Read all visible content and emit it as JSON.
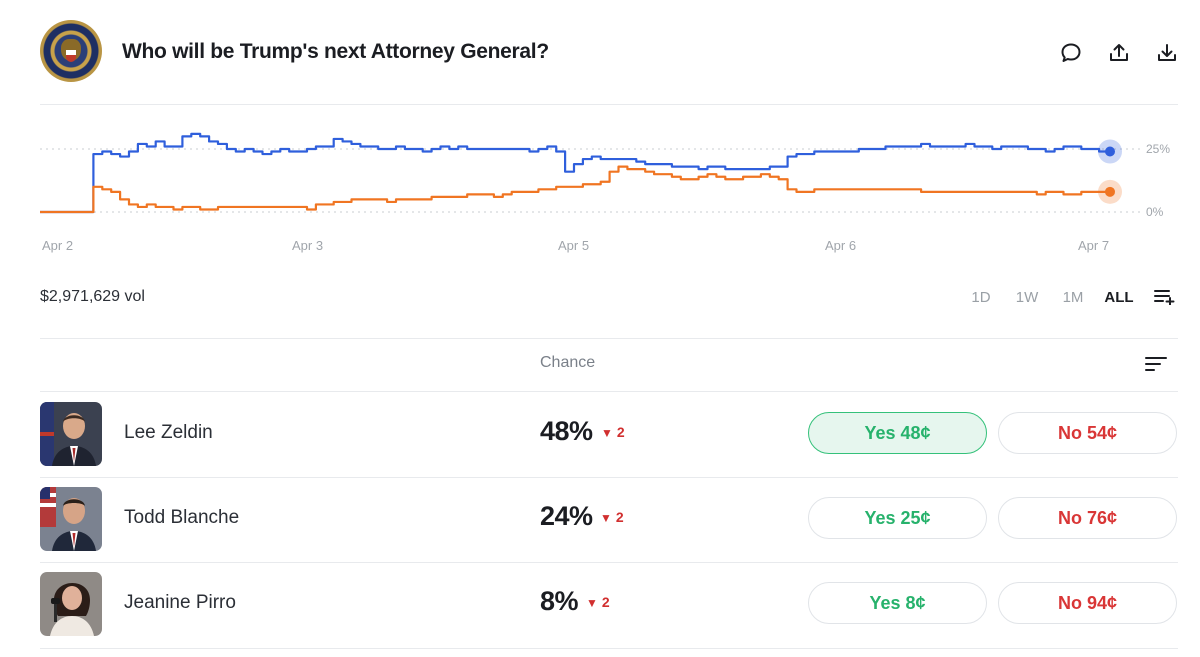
{
  "market": {
    "title": "Who will be Trump's next Attorney General?",
    "volume": "$2,971,629 vol"
  },
  "header_icons": [
    "comment-icon",
    "share-icon",
    "download-icon"
  ],
  "chart_data": {
    "type": "line",
    "x_labels": [
      "Apr 2",
      "Apr 3",
      "Apr 5",
      "Apr 6",
      "Apr 7"
    ],
    "y_ticks": [
      "25%",
      "0%"
    ],
    "ylim": [
      0,
      35
    ],
    "grid": true,
    "series": [
      {
        "color": "#2f5fdc",
        "values": [
          0,
          0,
          0,
          0,
          0,
          0,
          23,
          24,
          23,
          22,
          24,
          27,
          26,
          28,
          26,
          26,
          30,
          31,
          30,
          28,
          27,
          25,
          24,
          25,
          24,
          23,
          24,
          25,
          24,
          24,
          25,
          26,
          26,
          29,
          28,
          27,
          26,
          26,
          25,
          25,
          26,
          25,
          25,
          24,
          25,
          26,
          25,
          26,
          25,
          25,
          25,
          25,
          25,
          25,
          25,
          24,
          25,
          26,
          24,
          16,
          19,
          21,
          22,
          21,
          21,
          21,
          21,
          20,
          19,
          19,
          19,
          18,
          18,
          18,
          17,
          18,
          18,
          17,
          17,
          17,
          17,
          17,
          18,
          18,
          22,
          23,
          23,
          24,
          24,
          24,
          24,
          24,
          25,
          25,
          25,
          26,
          26,
          26,
          26,
          27,
          26,
          26,
          26,
          26,
          27,
          26,
          26,
          25,
          26,
          26,
          26,
          25,
          25,
          24,
          25,
          26,
          26,
          25,
          25,
          24,
          25
        ]
      },
      {
        "color": "#f07522",
        "values": [
          0,
          0,
          0,
          0,
          0,
          0,
          10,
          9,
          8,
          5,
          3,
          2,
          3,
          2,
          2,
          1,
          2,
          2,
          1,
          1,
          2,
          2,
          2,
          2,
          2,
          2,
          2,
          2,
          2,
          2,
          1,
          3,
          3,
          4,
          4,
          5,
          5,
          5,
          5,
          4,
          5,
          5,
          5,
          5,
          6,
          6,
          6,
          6,
          7,
          7,
          7,
          6,
          7,
          8,
          8,
          8,
          9,
          9,
          10,
          10,
          10,
          11,
          11,
          12,
          16,
          18,
          17,
          17,
          16,
          15,
          15,
          14,
          13,
          13,
          14,
          15,
          14,
          13,
          13,
          14,
          14,
          15,
          14,
          13,
          9,
          8,
          8,
          9,
          9,
          9,
          9,
          9,
          9,
          9,
          9,
          9,
          9,
          9,
          9,
          8,
          8,
          8,
          8,
          8,
          8,
          8,
          8,
          8,
          8,
          8,
          8,
          8,
          7,
          8,
          8,
          7,
          7,
          8,
          8,
          8,
          8
        ]
      }
    ],
    "current": [
      {
        "color": "#2f5fdc",
        "value": 24
      },
      {
        "color": "#f07522",
        "value": 8
      }
    ]
  },
  "ranges": [
    {
      "label": "1D",
      "active": false
    },
    {
      "label": "1W",
      "active": false
    },
    {
      "label": "1M",
      "active": false
    },
    {
      "label": "ALL",
      "active": true
    }
  ],
  "table": {
    "chance_header": "Chance",
    "rows": [
      {
        "name": "Lee Zeldin",
        "chance": "48%",
        "change": "2",
        "yes": "Yes 48¢",
        "no": "No 54¢",
        "yes_selected": true
      },
      {
        "name": "Todd Blanche",
        "chance": "24%",
        "change": "2",
        "yes": "Yes 25¢",
        "no": "No 76¢",
        "yes_selected": false
      },
      {
        "name": "Jeanine Pirro",
        "chance": "8%",
        "change": "2",
        "yes": "Yes 8¢",
        "no": "No 94¢",
        "yes_selected": false
      }
    ]
  },
  "colors": {
    "yes": "#27b26c",
    "no": "#d93636",
    "down": "#d12f2f"
  }
}
